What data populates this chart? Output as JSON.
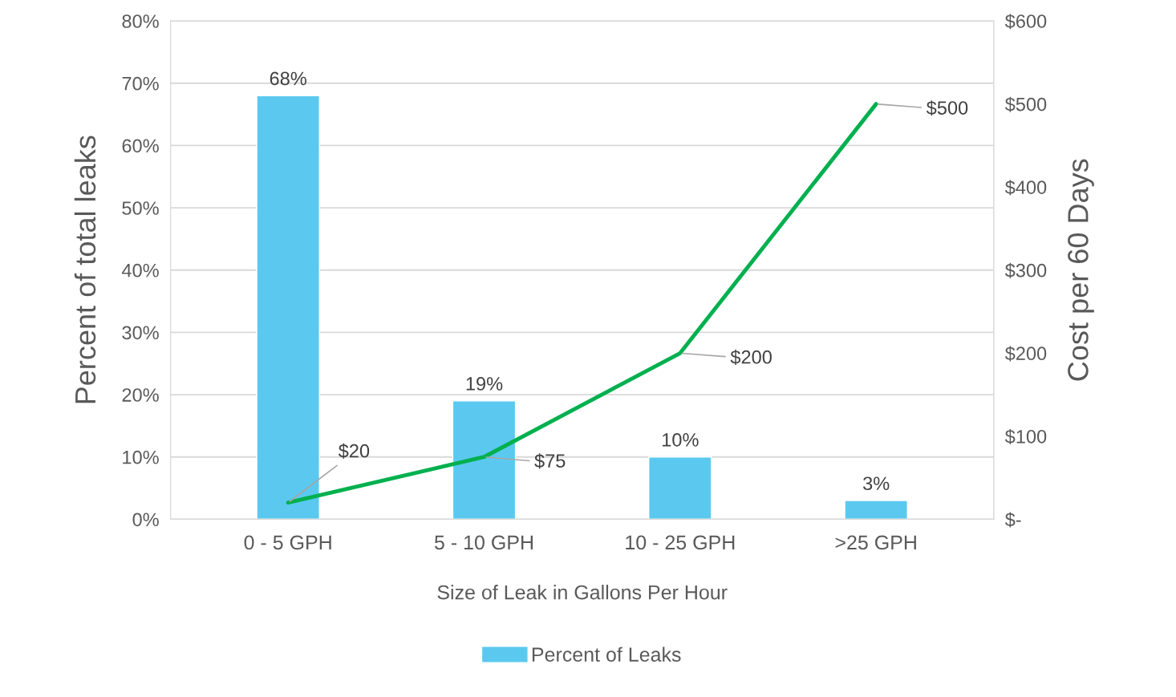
{
  "chart_data": {
    "type": "bar",
    "xlabel": "Size of Leak in Gallons Per Hour",
    "ylabel": "Percent of total leaks",
    "y2label": "Cost per 60 Days",
    "categories": [
      "0 - 5 GPH",
      "5 - 10 GPH",
      "10 - 25 GPH",
      ">25 GPH"
    ],
    "series": [
      {
        "name": "Percent of Leaks",
        "color": "#5bc9ef",
        "values": [
          68,
          19,
          10,
          3
        ],
        "value_labels": [
          "68%",
          "19%",
          "10%",
          "3%"
        ]
      },
      {
        "type": "line",
        "axis": "y2",
        "color": "#00b04f",
        "values": [
          20,
          75,
          200,
          500
        ],
        "value_labels": [
          "$20",
          "$75",
          "$200",
          "$500"
        ]
      }
    ],
    "ylim": [
      0,
      80
    ],
    "yticks": [
      {
        "value": 0,
        "label": "0%"
      },
      {
        "value": 10,
        "label": "10%"
      },
      {
        "value": 20,
        "label": "20%"
      },
      {
        "value": 30,
        "label": "30%"
      },
      {
        "value": 40,
        "label": "40%"
      },
      {
        "value": 50,
        "label": "50%"
      },
      {
        "value": 60,
        "label": "60%"
      },
      {
        "value": 70,
        "label": "70%"
      },
      {
        "value": 80,
        "label": "80%"
      }
    ],
    "y2lim": [
      0,
      600
    ],
    "y2ticks": [
      {
        "value": 0,
        "label": "$-"
      },
      {
        "value": 100,
        "label": "$100"
      },
      {
        "value": 200,
        "label": "$200"
      },
      {
        "value": 300,
        "label": "$300"
      },
      {
        "value": 400,
        "label": "$400"
      },
      {
        "value": 500,
        "label": "$500"
      },
      {
        "value": 600,
        "label": "$600"
      }
    ],
    "grid": "y",
    "legend": "bottom",
    "marker": "none",
    "line_style": "solid"
  }
}
